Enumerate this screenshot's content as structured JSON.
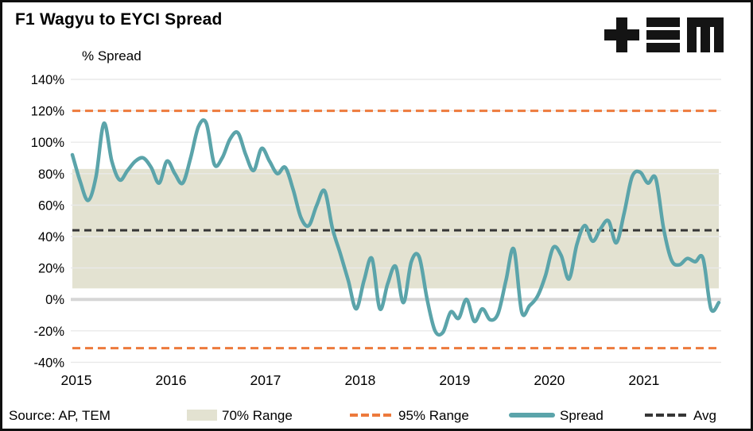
{
  "header": {
    "title": "F1 Wagyu to EYCI Spread",
    "logo_name": "tem-logo"
  },
  "footer": {
    "source": "Source: AP, TEM"
  },
  "legend": {
    "range70_label": "70% Range",
    "range95_label": "95% Range",
    "spread_label": "Spread",
    "avg_label": "Avg"
  },
  "colors": {
    "spread_line": "#5BA4AA",
    "range70_band": "#E3E2D1",
    "range95_dash": "#ED7A3C",
    "avg_dash": "#363636",
    "gridline": "#E9E9E9",
    "zero_line": "#D6D6D6",
    "text": "#000000",
    "logo": "#141414"
  },
  "chart_data": {
    "type": "line",
    "title": "F1 Wagyu to EYCI Spread",
    "ylabel": "% Spread",
    "xlabel": "",
    "ylim": [
      -40,
      140
    ],
    "grid": "horizontal 20% steps",
    "legend_position": "bottom",
    "y_ticks": [
      140,
      120,
      100,
      80,
      60,
      40,
      20,
      0,
      -20,
      -40
    ],
    "y_tick_labels": [
      "140%",
      "120%",
      "100%",
      "80%",
      "60%",
      "40%",
      "20%",
      "0%",
      "-20%",
      "-40%"
    ],
    "x_tick_labels": [
      "2015",
      "2016",
      "2017",
      "2018",
      "2019",
      "2020",
      "2021"
    ],
    "start": "2015-01",
    "end": "2021-11",
    "frequency": "monthly",
    "series": [
      {
        "name": "Spread",
        "unit": "%",
        "values": [
          92,
          75,
          63,
          78,
          112,
          88,
          76,
          82,
          88,
          90,
          84,
          74,
          88,
          80,
          74,
          90,
          110,
          112,
          86,
          90,
          102,
          106,
          92,
          82,
          96,
          88,
          80,
          84,
          70,
          52,
          47,
          60,
          69,
          45,
          29,
          12,
          -6,
          12,
          26,
          -6,
          10,
          21,
          -2,
          24,
          27,
          0,
          -20,
          -21,
          -8,
          -12,
          0,
          -14,
          -6,
          -13,
          -9,
          12,
          32,
          -8,
          -4,
          2,
          15,
          33,
          28,
          13,
          35,
          47,
          37,
          45,
          50,
          36,
          55,
          78,
          81,
          74,
          77,
          45,
          25,
          22,
          26,
          24,
          26,
          -6,
          -2
        ]
      }
    ],
    "band_70pct_range": {
      "low": 7,
      "high": 83
    },
    "reference_lines": {
      "range95_upper": 120,
      "range95_lower": -31,
      "avg": 44
    }
  }
}
